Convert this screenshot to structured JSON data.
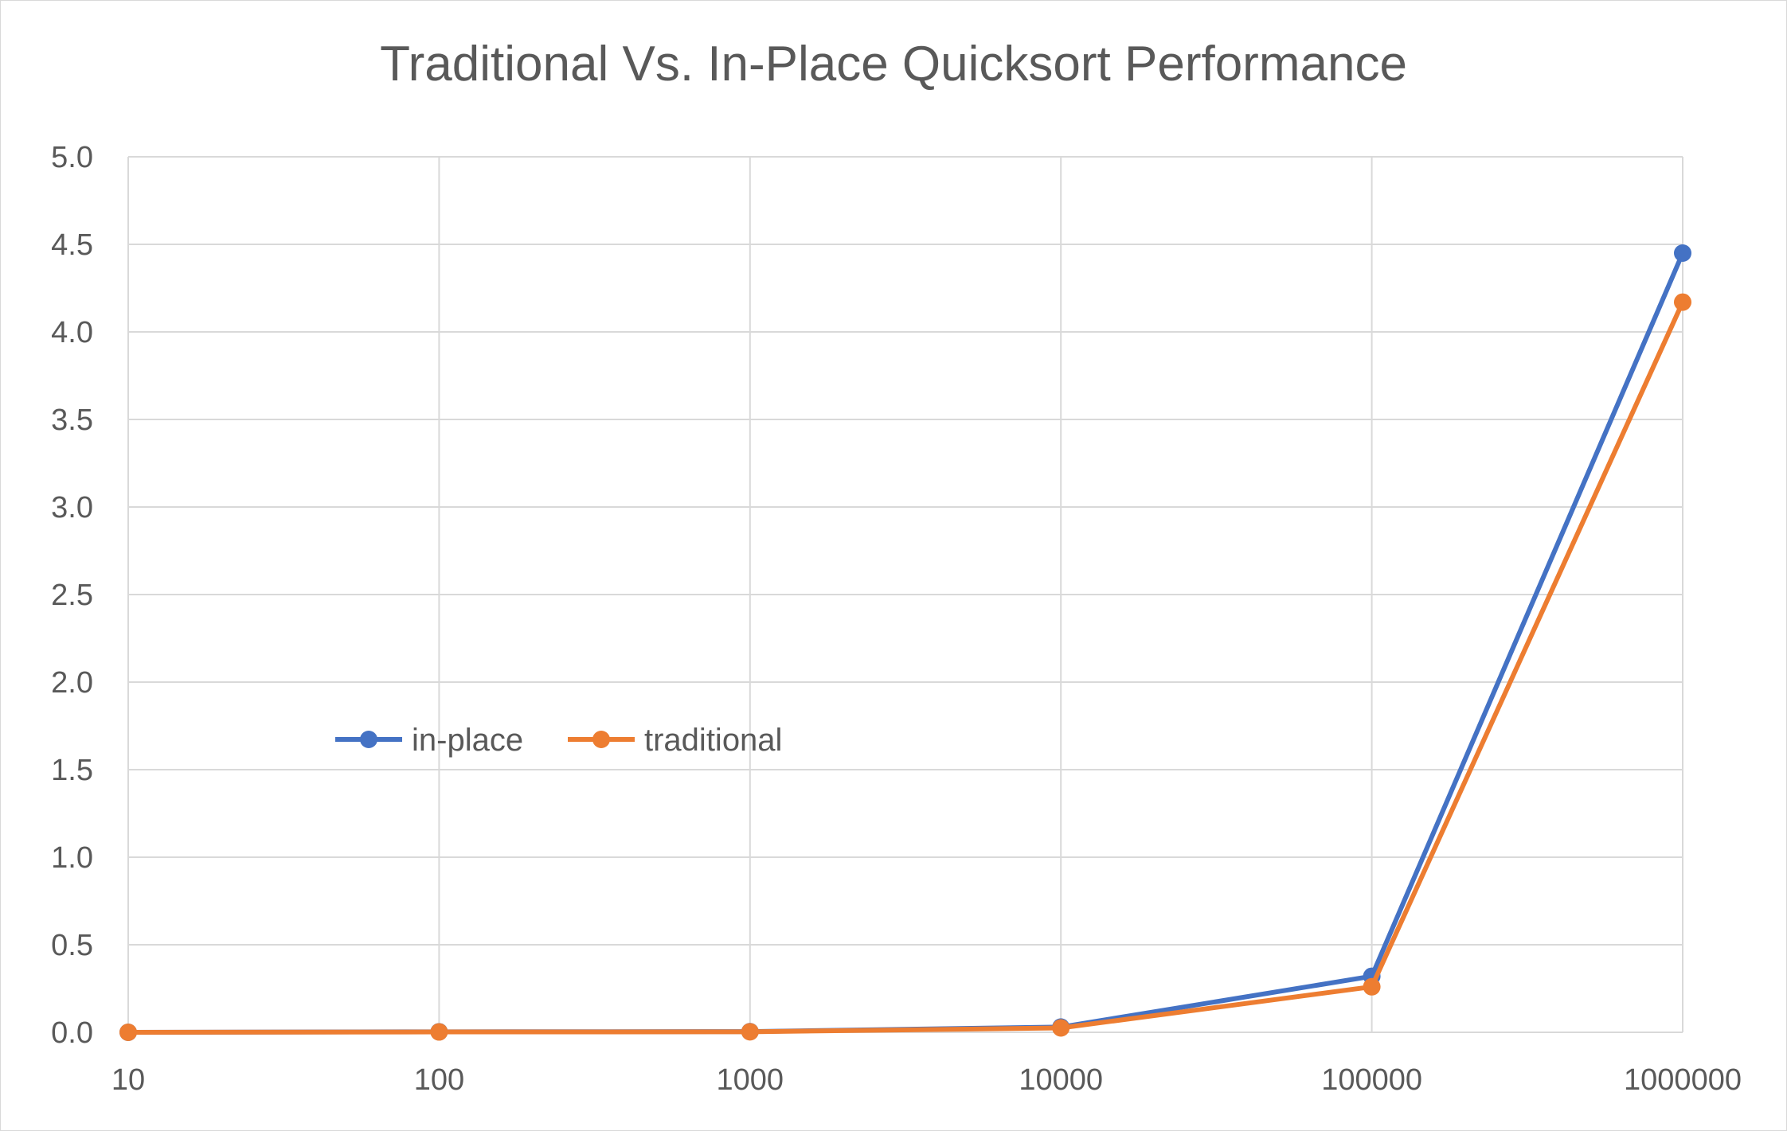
{
  "chart_data": {
    "type": "line",
    "title": "Traditional Vs. In-Place Quicksort Performance",
    "xlabel": "",
    "ylabel": "",
    "x": [
      "10",
      "100",
      "1000",
      "10000",
      "100000",
      "1000000"
    ],
    "ylim": [
      0,
      5.0
    ],
    "yticks": [
      "0.0",
      "0.5",
      "1.0",
      "1.5",
      "2.0",
      "2.5",
      "3.0",
      "3.5",
      "4.0",
      "4.5",
      "5.0"
    ],
    "grid": true,
    "legend_position": "inside-left-middle",
    "series": [
      {
        "name": "in-place",
        "color": "#4472C4",
        "values": [
          0.0,
          0.003,
          0.004,
          0.03,
          0.32,
          4.45
        ]
      },
      {
        "name": "traditional",
        "color": "#ED7D31",
        "values": [
          0.0,
          0.002,
          0.003,
          0.025,
          0.26,
          4.17
        ]
      }
    ]
  }
}
